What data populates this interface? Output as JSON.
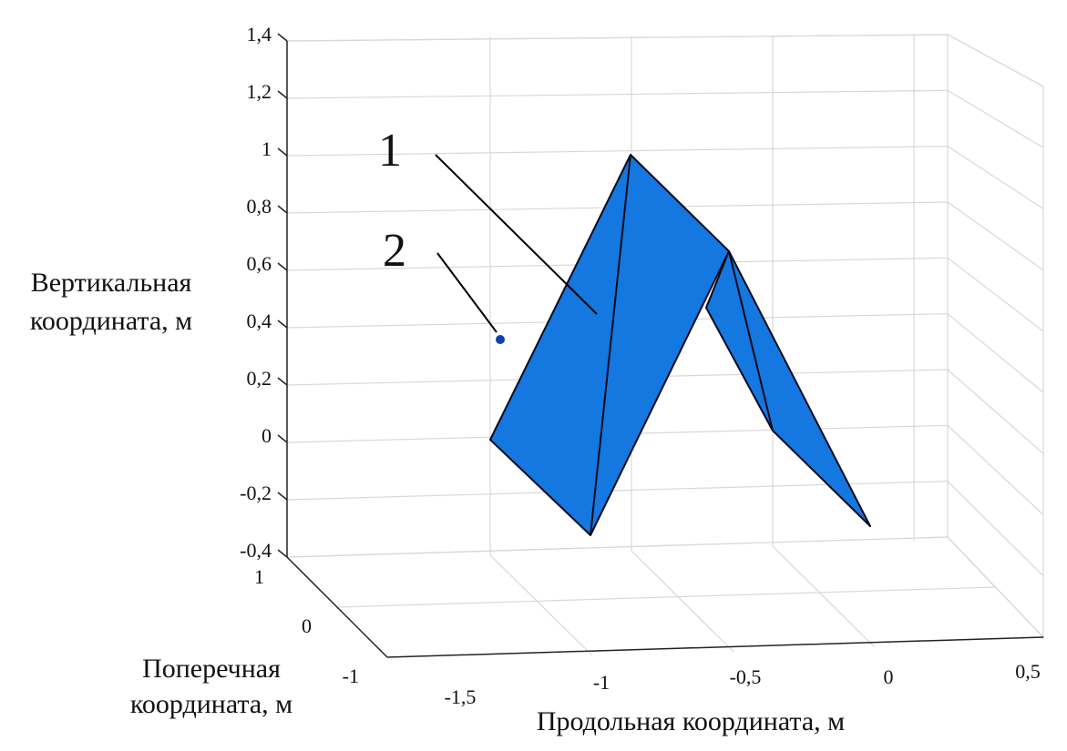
{
  "axes": {
    "vertical": {
      "label_lines": [
        "Вертикальная",
        "координата, м"
      ],
      "ticks": [
        "1,4",
        "1,2",
        "1",
        "0,8",
        "0,6",
        "0,4",
        "0,2",
        "0",
        "-0,2",
        "-0,4"
      ]
    },
    "transverse": {
      "label_lines": [
        "Поперечная",
        "координата, м"
      ],
      "ticks": [
        "1",
        "0",
        "-1"
      ]
    },
    "longitudinal": {
      "label": "Продольная координата, м",
      "ticks": [
        "-1,5",
        "-1",
        "-0,5",
        "0",
        "0,5"
      ]
    }
  },
  "annotations": [
    "1",
    "2"
  ]
}
